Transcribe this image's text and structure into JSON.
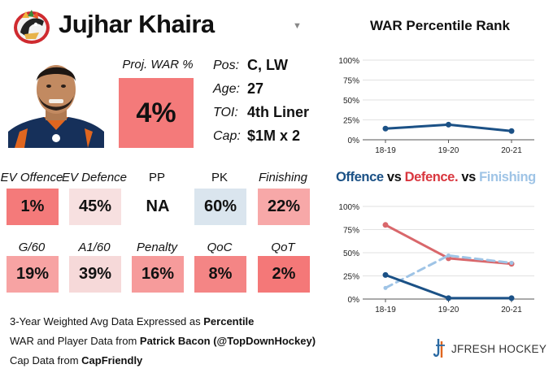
{
  "header": {
    "player_name": "Jujhar Khaira",
    "dropdown_icon": "triangle-down-icon"
  },
  "proj_war": {
    "label": "Proj. WAR %",
    "value": "4%",
    "color": "#f47a7a"
  },
  "info": [
    {
      "label": "Pos:",
      "value": "C, LW"
    },
    {
      "label": "Age:",
      "value": "27"
    },
    {
      "label": "TOI:",
      "value": "4th Liner"
    },
    {
      "label": "Cap:",
      "value": "$1M x 2"
    }
  ],
  "metrics": [
    {
      "label": "EV Offence",
      "value": "1%",
      "color": "#f47a7a",
      "italic": true
    },
    {
      "label": "EV Defence",
      "value": "45%",
      "color": "#f7e0e0",
      "italic": true
    },
    {
      "label": "PP",
      "value": "NA",
      "color": "#ffffff",
      "italic": false
    },
    {
      "label": "PK",
      "value": "60%",
      "color": "#dae5ee",
      "italic": false
    },
    {
      "label": "Finishing",
      "value": "22%",
      "color": "#f7a8a8",
      "italic": true
    },
    {
      "label": "G/60",
      "value": "19%",
      "color": "#f7a3a3",
      "italic": true
    },
    {
      "label": "A1/60",
      "value": "39%",
      "color": "#f6d9d9",
      "italic": true
    },
    {
      "label": "Penalty",
      "value": "16%",
      "color": "#f69b9b",
      "italic": true
    },
    {
      "label": "QoC",
      "value": "8%",
      "color": "#f48585",
      "italic": true
    },
    {
      "label": "QoT",
      "value": "2%",
      "color": "#f47878",
      "italic": true
    }
  ],
  "footer": {
    "line1_prefix": "3-Year Weighted Avg Data Expressed as ",
    "line1_bold": "Percentile",
    "line2_prefix": "WAR and Player Data from ",
    "line2_bold": "Patrick Bacon (@TopDownHockey)",
    "line3_prefix": "Cap Data from ",
    "line3_bold": "CapFriendly",
    "brand": "JFRESH HOCKEY"
  },
  "chart_data": [
    {
      "type": "line",
      "title": "WAR Percentile Rank",
      "categories": [
        "18-19",
        "19-20",
        "20-21"
      ],
      "y_ticks": [
        "0%",
        "25%",
        "50%",
        "75%",
        "100%"
      ],
      "ylim": [
        0,
        100
      ],
      "grid": true,
      "series": [
        {
          "values": [
            14,
            19,
            11
          ],
          "color": "#1b5186",
          "dashed": false
        }
      ]
    },
    {
      "type": "line",
      "title_parts": [
        {
          "text": "Offence",
          "color": "#1b5186"
        },
        {
          "text": " vs ",
          "color": "#111111"
        },
        {
          "text": "Defence.",
          "color": "#d9363e"
        },
        {
          "text": " vs ",
          "color": "#111111"
        },
        {
          "text": "Finishing",
          "color": "#9fc4e6"
        }
      ],
      "categories": [
        "18-19",
        "19-20",
        "20-21"
      ],
      "y_ticks": [
        "0%",
        "25%",
        "50%",
        "75%",
        "100%"
      ],
      "ylim": [
        0,
        100
      ],
      "grid": true,
      "series": [
        {
          "values": [
            80,
            44,
            38
          ],
          "color": "#d9676b",
          "dashed": false
        },
        {
          "values": [
            12,
            47,
            39
          ],
          "color": "#9fc4e6",
          "dashed": true
        },
        {
          "values": [
            26,
            1,
            1
          ],
          "color": "#1b5186",
          "dashed": false
        }
      ]
    }
  ]
}
